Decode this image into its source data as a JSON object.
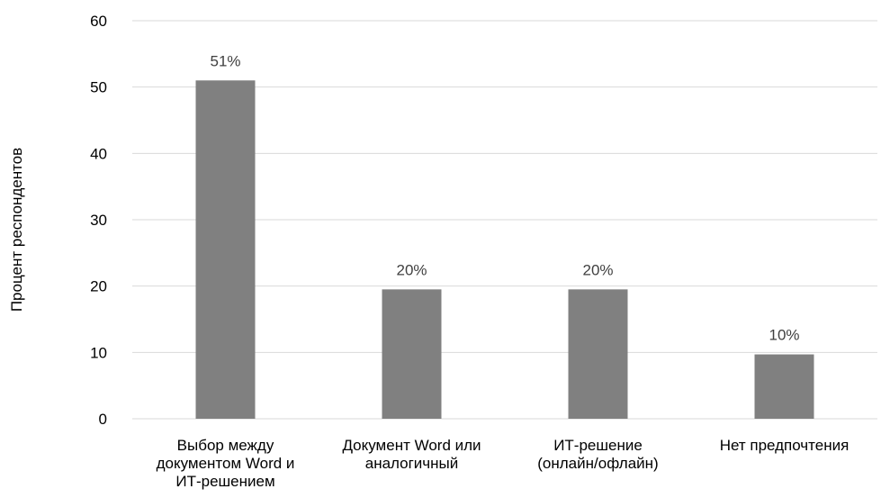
{
  "chart_data": {
    "type": "bar",
    "title": "",
    "xlabel": "",
    "ylabel": "Процент респондентов",
    "ylim": [
      0,
      60
    ],
    "yticks": [
      0,
      10,
      20,
      30,
      40,
      50,
      60
    ],
    "grid": true,
    "legend": "none",
    "bar_color": "#808080",
    "grid_color": "#d9d9d9",
    "categories": [
      [
        "Выбор между",
        "документом Word и",
        "ИТ-решением"
      ],
      [
        "Документ Word или",
        "аналогичный"
      ],
      [
        "ИТ-решение",
        "(онлайн/офлайн)"
      ],
      [
        "Нет предпочтения"
      ]
    ],
    "values": [
      51,
      19.5,
      19.5,
      9.7
    ],
    "data_labels": [
      "51%",
      "20%",
      "20%",
      "10%"
    ]
  }
}
